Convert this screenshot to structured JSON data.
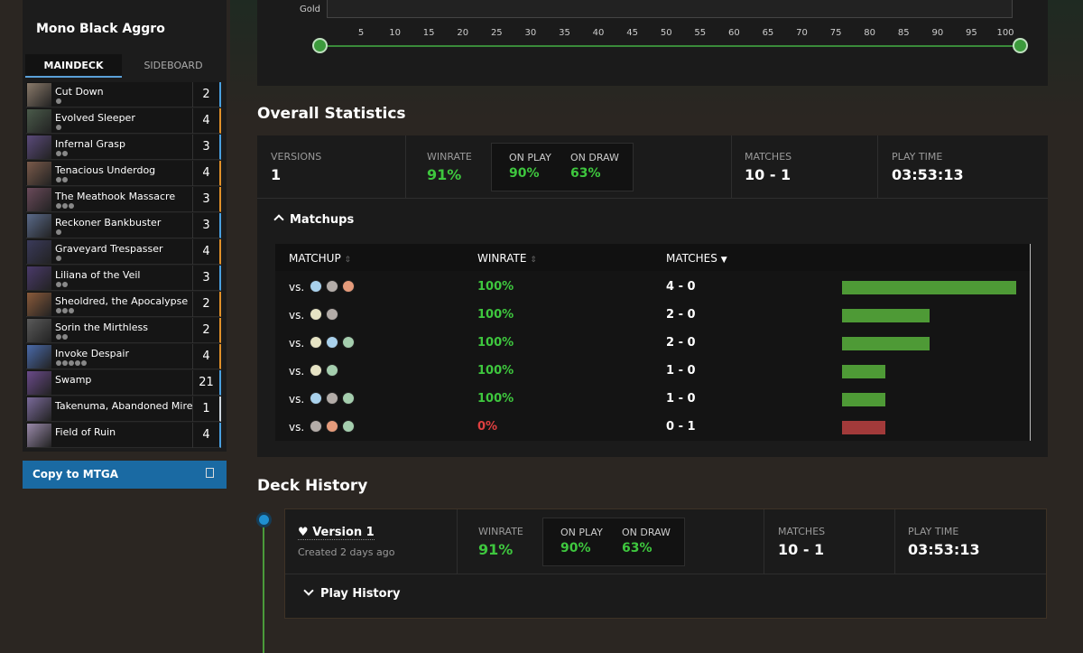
{
  "deck": {
    "title": "Mono Black Aggro",
    "tabs": [
      "MAINDECK",
      "SIDEBOARD"
    ],
    "cards": [
      {
        "name": "Cut Down",
        "count": 2
      },
      {
        "name": "Evolved Sleeper",
        "count": 4
      },
      {
        "name": "Infernal Grasp",
        "count": 3
      },
      {
        "name": "Tenacious Underdog",
        "count": 4
      },
      {
        "name": "The Meathook Massacre",
        "count": 3
      },
      {
        "name": "Reckoner Bankbuster",
        "count": 3
      },
      {
        "name": "Graveyard Trespasser",
        "count": 4
      },
      {
        "name": "Liliana of the Veil",
        "count": 3
      },
      {
        "name": "Sheoldred, the Apocalypse",
        "count": 2
      },
      {
        "name": "Sorin the Mirthless",
        "count": 2
      },
      {
        "name": "Invoke Despair",
        "count": 4
      },
      {
        "name": "Swamp",
        "count": 21
      },
      {
        "name": "Takenuma, Abandoned Mire",
        "count": 1
      },
      {
        "name": "Field of Ruin",
        "count": 4
      }
    ],
    "copy_button": "Copy to MTGA"
  },
  "slider": {
    "label": "Gold",
    "ticks": [
      5,
      10,
      15,
      20,
      25,
      30,
      35,
      40,
      45,
      50,
      55,
      60,
      65,
      70,
      75,
      80,
      85,
      90,
      95,
      100
    ]
  },
  "overall": {
    "title": "Overall Statistics",
    "versions": {
      "label": "VERSIONS",
      "value": "1"
    },
    "winrate": {
      "label": "WINRATE",
      "value": "91%"
    },
    "on_play": {
      "label": "ON PLAY",
      "value": "90%"
    },
    "on_draw": {
      "label": "ON DRAW",
      "value": "63%"
    },
    "matches": {
      "label": "MATCHES",
      "value": "10 - 1"
    },
    "play_time": {
      "label": "PLAY TIME",
      "value": "03:53:13"
    },
    "matchups": {
      "title": "Matchups",
      "headers": [
        "MATCHUP",
        "WINRATE",
        "MATCHES"
      ],
      "rows": [
        {
          "prefix": "vs.",
          "winrate": "100%",
          "matches": "4 - 0",
          "wins": 4,
          "losses": 0
        },
        {
          "prefix": "vs.",
          "winrate": "100%",
          "matches": "2 - 0",
          "wins": 2,
          "losses": 0
        },
        {
          "prefix": "vs.",
          "winrate": "100%",
          "matches": "2 - 0",
          "wins": 2,
          "losses": 0
        },
        {
          "prefix": "vs.",
          "winrate": "100%",
          "matches": "1 - 0",
          "wins": 1,
          "losses": 0
        },
        {
          "prefix": "vs.",
          "winrate": "100%",
          "matches": "1 - 0",
          "wins": 1,
          "losses": 0
        },
        {
          "prefix": "vs.",
          "winrate": "0%",
          "matches": "0 - 1",
          "wins": 0,
          "losses": 1
        }
      ]
    }
  },
  "history": {
    "title": "Deck History",
    "version": {
      "name": "Version 1",
      "created": "Created 2 days ago",
      "winrate": {
        "label": "WINRATE",
        "value": "91%"
      },
      "on_play": {
        "label": "ON PLAY",
        "value": "90%"
      },
      "on_draw": {
        "label": "ON DRAW",
        "value": "63%"
      },
      "matches": {
        "label": "MATCHES",
        "value": "10 - 1"
      },
      "play_time": {
        "label": "PLAY TIME",
        "value": "03:53:13"
      },
      "play_history": "Play History"
    }
  }
}
